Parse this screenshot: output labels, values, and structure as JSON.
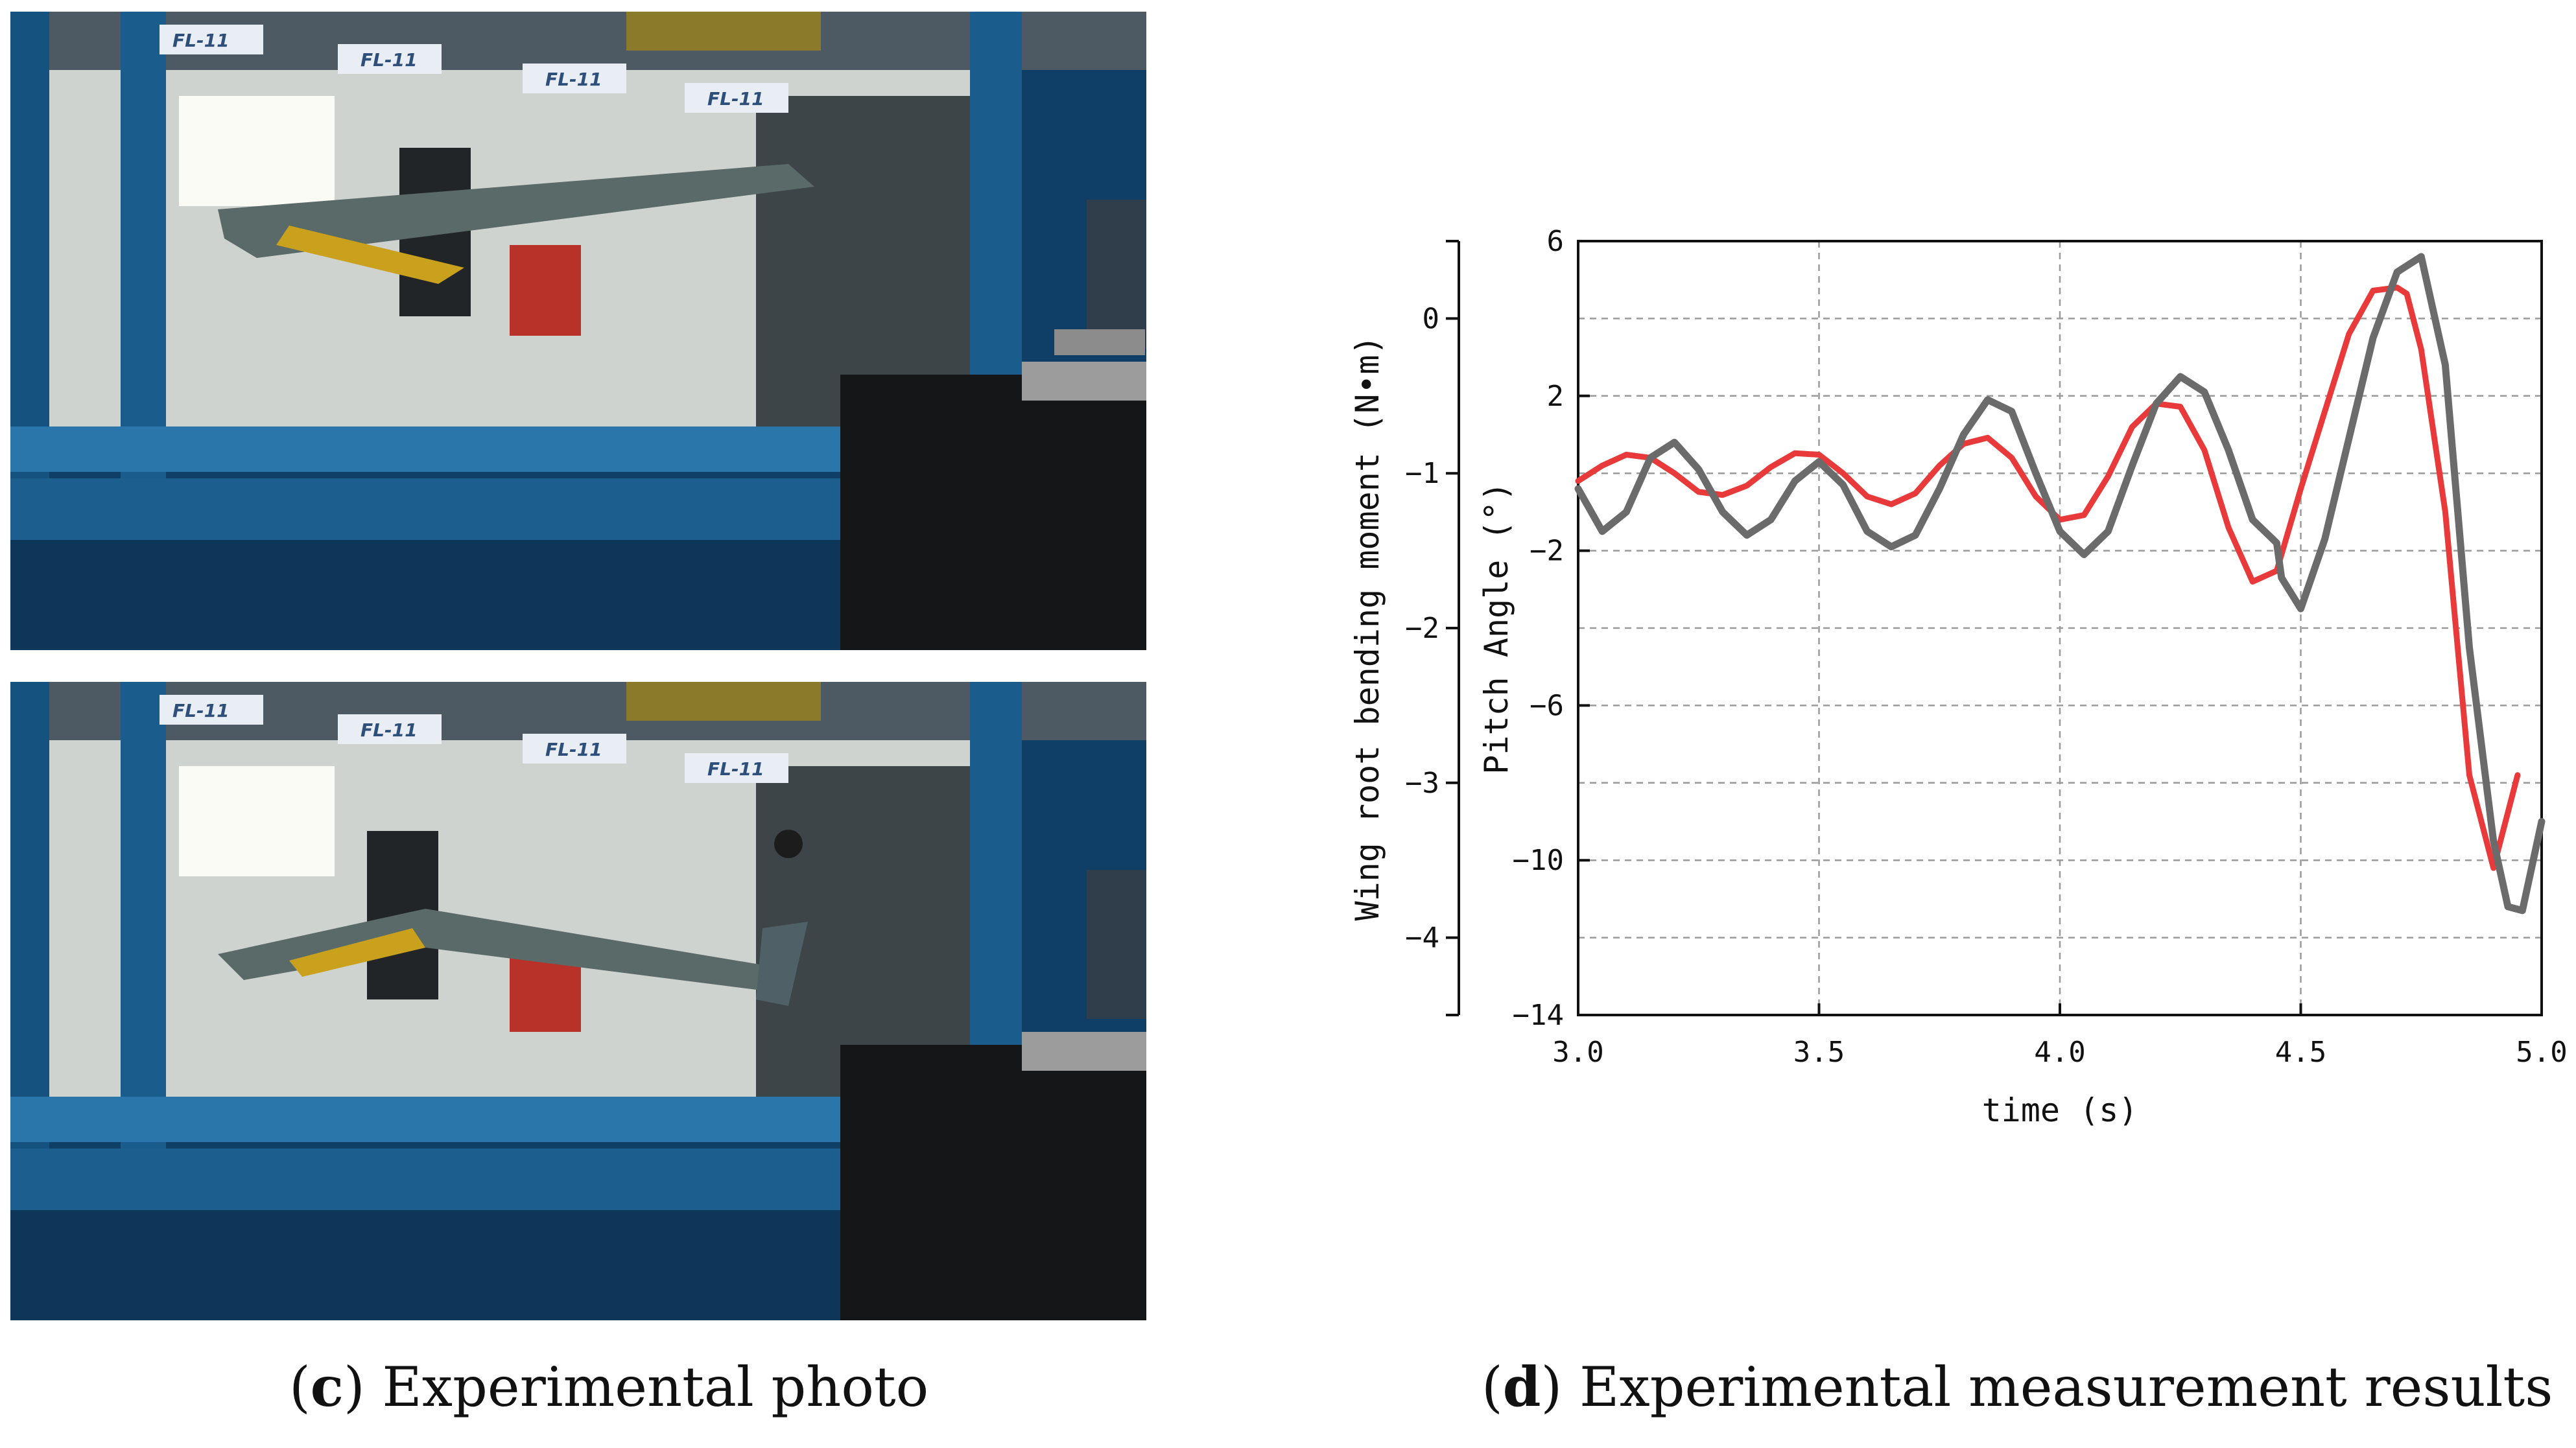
{
  "figure": {
    "photo_panel": {
      "caption_letter": "c",
      "caption_text": "Experimental photo",
      "tunnel_label": "FL-11"
    },
    "chart_panel": {
      "caption_letter": "d",
      "caption_text": "Experimental measurement results"
    }
  },
  "chart_data": {
    "type": "line",
    "xlabel": "time (s)",
    "ylabel_left": "Wing root bending moment (N•m)",
    "ylabel_right": "Pitch Angle (°)",
    "xlim": [
      3.0,
      5.0
    ],
    "x_ticks": [
      3.0,
      3.5,
      4.0,
      4.5,
      5.0
    ],
    "x_tick_labels": [
      "3.0",
      "3.5",
      "4.0",
      "4.5",
      "5.0"
    ],
    "moment_axis": {
      "lim": [
        -4.5,
        0.5
      ],
      "ticks": [
        0,
        -1,
        -2,
        -3,
        -4
      ],
      "tick_labels": [
        "0",
        "−1",
        "−2",
        "−3",
        "−4"
      ]
    },
    "pitch_axis": {
      "lim": [
        -14,
        6
      ],
      "ticks": [
        6,
        2,
        -2,
        -6,
        -10,
        -14
      ],
      "tick_labels": [
        "6",
        "2",
        "−2",
        "−6",
        "−10",
        "−14"
      ]
    },
    "grid": true,
    "colors": {
      "red": "#e83a3a",
      "gray": "#6b6b6b",
      "grid": "#9a9a9a"
    },
    "series": [
      {
        "name": "red-curve",
        "axis": "moment",
        "x": [
          3.0,
          3.05,
          3.1,
          3.15,
          3.2,
          3.25,
          3.3,
          3.35,
          3.4,
          3.45,
          3.5,
          3.55,
          3.6,
          3.65,
          3.7,
          3.75,
          3.8,
          3.85,
          3.9,
          3.95,
          4.0,
          4.05,
          4.1,
          4.15,
          4.2,
          4.25,
          4.3,
          4.35,
          4.4,
          4.45,
          4.5,
          4.55,
          4.6,
          4.65,
          4.7,
          4.72,
          4.75,
          4.8,
          4.85,
          4.9,
          4.95
        ],
        "y": [
          -1.05,
          -0.95,
          -0.88,
          -0.9,
          -1.0,
          -1.12,
          -1.14,
          -1.08,
          -0.96,
          -0.87,
          -0.88,
          -1.0,
          -1.15,
          -1.2,
          -1.13,
          -0.95,
          -0.81,
          -0.77,
          -0.9,
          -1.15,
          -1.3,
          -1.27,
          -1.02,
          -0.7,
          -0.55,
          -0.57,
          -0.85,
          -1.35,
          -1.7,
          -1.63,
          -1.1,
          -0.6,
          -0.1,
          0.18,
          0.2,
          0.16,
          -0.2,
          -1.25,
          -2.95,
          -3.55,
          -2.95
        ]
      },
      {
        "name": "gray-curve",
        "axis": "pitch",
        "x": [
          3.0,
          3.05,
          3.1,
          3.15,
          3.2,
          3.25,
          3.3,
          3.35,
          3.4,
          3.45,
          3.5,
          3.55,
          3.6,
          3.65,
          3.7,
          3.75,
          3.8,
          3.85,
          3.9,
          3.95,
          4.0,
          4.05,
          4.1,
          4.15,
          4.2,
          4.25,
          4.3,
          4.35,
          4.4,
          4.45,
          4.46,
          4.5,
          4.55,
          4.6,
          4.65,
          4.7,
          4.75,
          4.8,
          4.85,
          4.9,
          4.93,
          4.96,
          5.0
        ],
        "y": [
          -0.4,
          -1.5,
          -1.0,
          0.4,
          0.8,
          0.1,
          -1.0,
          -1.6,
          -1.2,
          -0.2,
          0.3,
          -0.3,
          -1.5,
          -1.9,
          -1.6,
          -0.4,
          1.0,
          1.9,
          1.6,
          0.0,
          -1.5,
          -2.1,
          -1.5,
          0.2,
          1.8,
          2.5,
          2.1,
          0.6,
          -1.2,
          -1.8,
          -2.7,
          -3.5,
          -1.7,
          0.9,
          3.5,
          5.2,
          5.6,
          2.8,
          -4.5,
          -9.5,
          -11.2,
          -11.3,
          -9.0
        ]
      }
    ]
  }
}
